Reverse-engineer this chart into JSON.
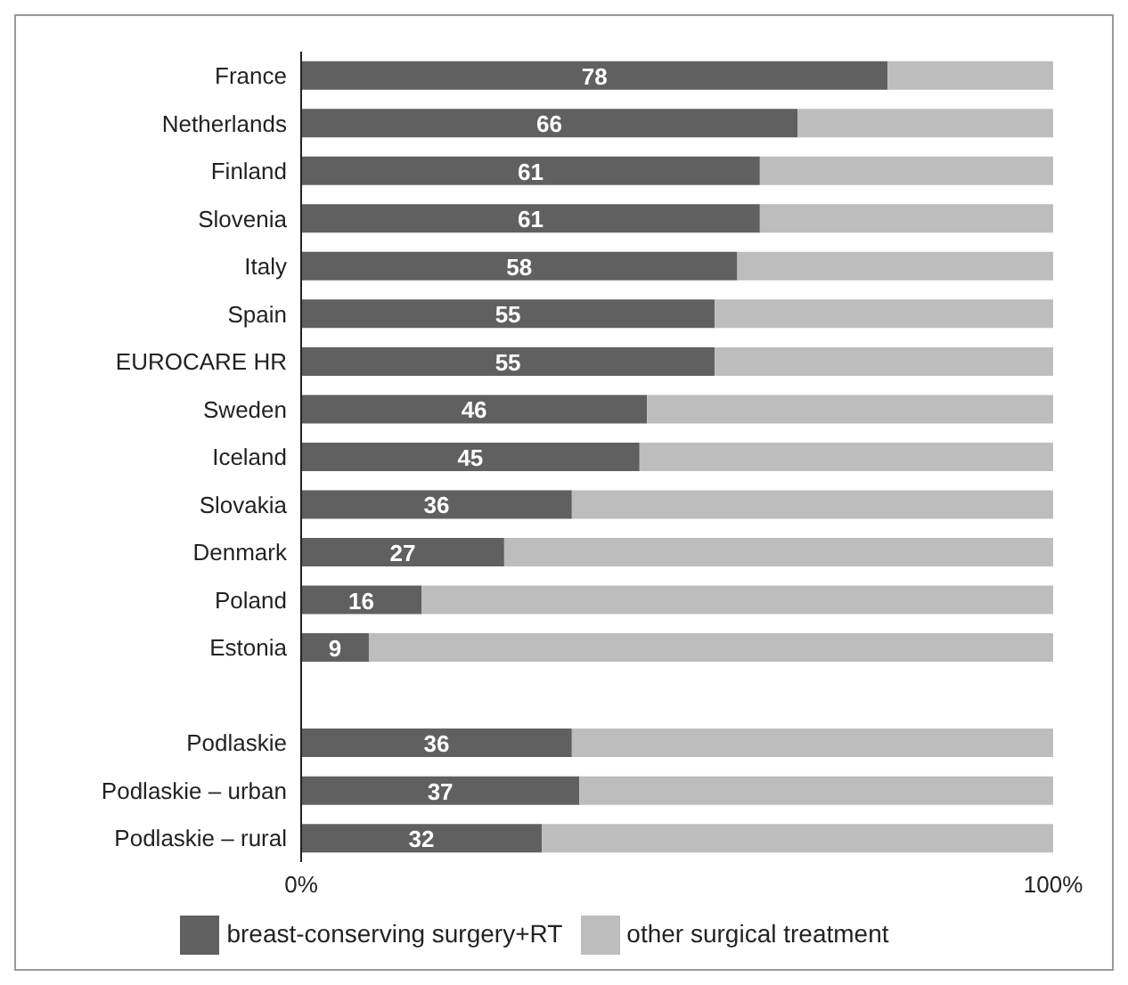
{
  "chart_data": {
    "type": "bar",
    "orientation": "horizontal",
    "stacked": true,
    "categories": [
      "France",
      "Netherlands",
      "Finland",
      "Slovenia",
      "Italy",
      "Spain",
      "EUROCARE HR",
      "Sweden",
      "Iceland",
      "Slovakia",
      "Denmark",
      "Poland",
      "Estonia",
      null,
      "Podlaskie",
      "Podlaskie – urban",
      "Podlaskie – rural"
    ],
    "series": [
      {
        "name": "breast-conserving surgery+RT",
        "color": "#606060",
        "values": [
          78,
          66,
          61,
          61,
          58,
          55,
          55,
          46,
          45,
          36,
          27,
          16,
          9,
          null,
          36,
          37,
          32
        ],
        "value_labels": [
          "78",
          "66",
          "61",
          "61",
          "58",
          "55",
          "55",
          "46",
          "45",
          "36",
          "27",
          "16",
          "9",
          null,
          "36",
          "37",
          "32"
        ]
      },
      {
        "name": "other surgical treatment",
        "color": "#bdbdbd",
        "values": [
          22,
          34,
          39,
          39,
          42,
          45,
          45,
          54,
          55,
          64,
          73,
          84,
          91,
          null,
          64,
          63,
          68
        ]
      }
    ],
    "xlim": [
      0,
      100
    ],
    "xticks": [
      {
        "value": 0,
        "label": "0%"
      },
      {
        "value": 100,
        "label": "100%"
      }
    ],
    "legend": "bottom"
  }
}
